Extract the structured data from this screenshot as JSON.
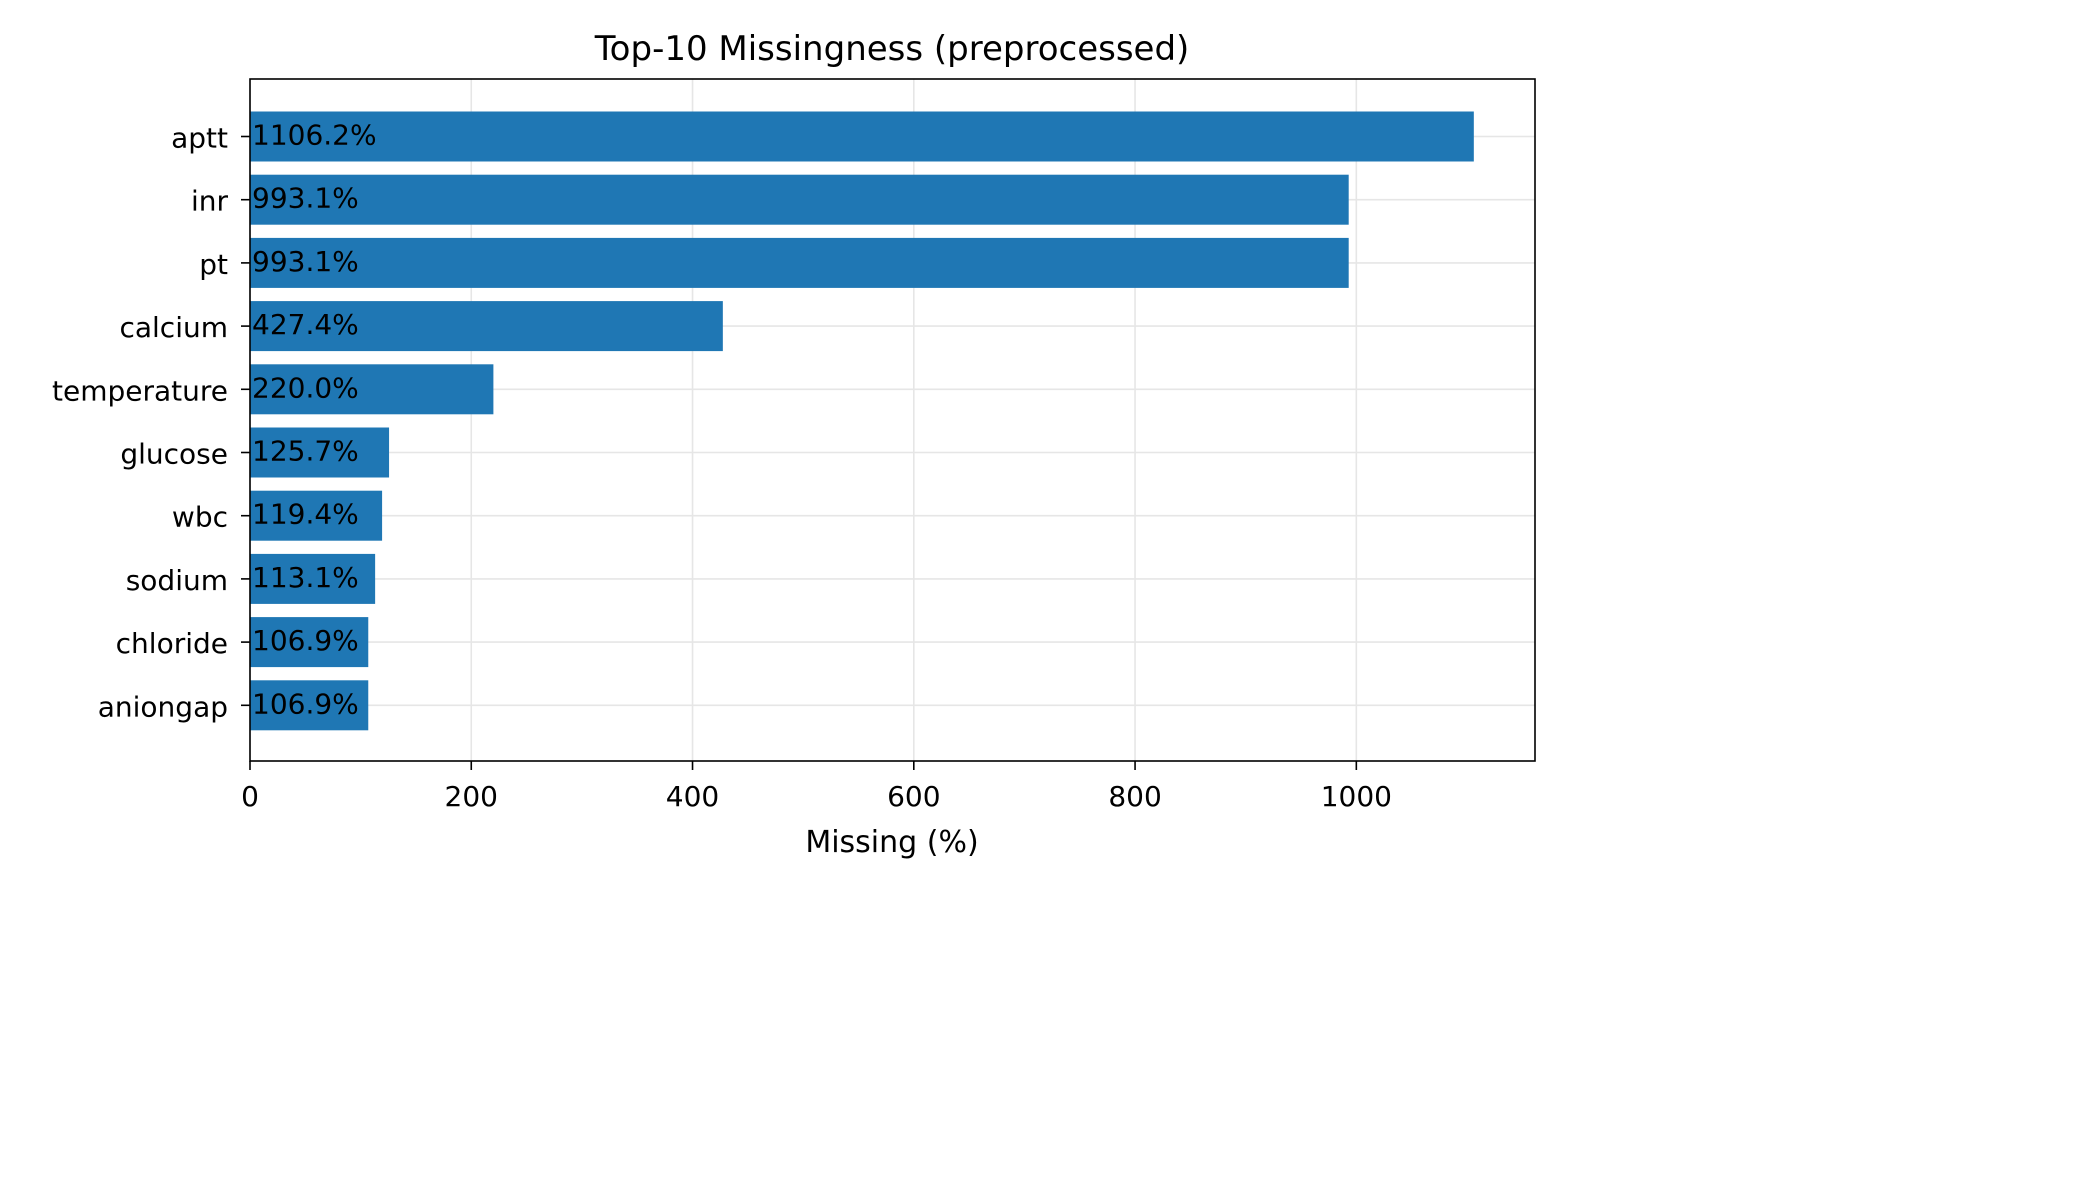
{
  "chart_data": {
    "type": "bar",
    "orientation": "horizontal",
    "title": "Top-10 Missingness (preprocessed)",
    "xlabel": "Missing (%)",
    "ylabel": "",
    "categories": [
      "aptt",
      "inr",
      "pt",
      "calcium",
      "temperature",
      "glucose",
      "wbc",
      "sodium",
      "chloride",
      "aniongap"
    ],
    "values": [
      1106.2,
      993.1,
      993.1,
      427.4,
      220.0,
      125.7,
      119.4,
      113.1,
      106.9,
      106.9
    ],
    "data_labels": [
      "1106.2%",
      "993.1%",
      "993.1%",
      "427.4%",
      "220.0%",
      "125.7%",
      "119.4%",
      "113.1%",
      "106.9%",
      "106.9%"
    ],
    "xlim": [
      0,
      1161.5
    ],
    "xticks": [
      0,
      200,
      400,
      600,
      800,
      1000
    ],
    "xtick_labels": [
      "0",
      "200",
      "400",
      "600",
      "800",
      "1000"
    ],
    "grid": true,
    "bar_color": "#1f77b4"
  }
}
